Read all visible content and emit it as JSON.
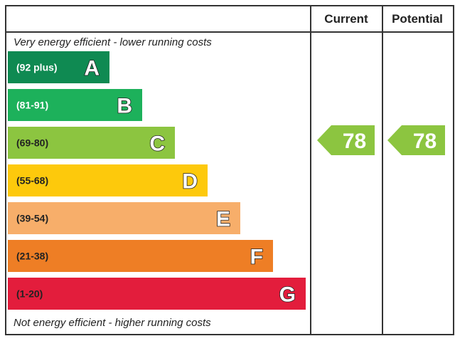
{
  "chart_data": {
    "type": "bar",
    "header": {
      "current_label": "Current",
      "potential_label": "Potential"
    },
    "top_caption": "Very energy efficient - lower running costs",
    "bottom_caption": "Not energy efficient - higher running costs",
    "bands": [
      {
        "letter": "A",
        "range": "(92 plus)",
        "color": "#0f8a52",
        "text_color": "#ffffff"
      },
      {
        "letter": "B",
        "range": "(81-91)",
        "color": "#1db15b",
        "text_color": "#ffffff"
      },
      {
        "letter": "C",
        "range": "(69-80)",
        "color": "#8cc540",
        "text_color": "#222222"
      },
      {
        "letter": "D",
        "range": "(55-68)",
        "color": "#fdc90c",
        "text_color": "#222222"
      },
      {
        "letter": "E",
        "range": "(39-54)",
        "color": "#f7ae6a",
        "text_color": "#222222"
      },
      {
        "letter": "F",
        "range": "(21-38)",
        "color": "#ee7e25",
        "text_color": "#222222"
      },
      {
        "letter": "G",
        "range": "(1-20)",
        "color": "#e31d3c",
        "text_color": "#222222"
      }
    ],
    "ratings": [
      {
        "column": "current",
        "value": 78,
        "value_label": "78",
        "band": "C",
        "color": "#8cc540"
      },
      {
        "column": "potential",
        "value": 78,
        "value_label": "78",
        "band": "C",
        "color": "#8cc540"
      }
    ]
  }
}
